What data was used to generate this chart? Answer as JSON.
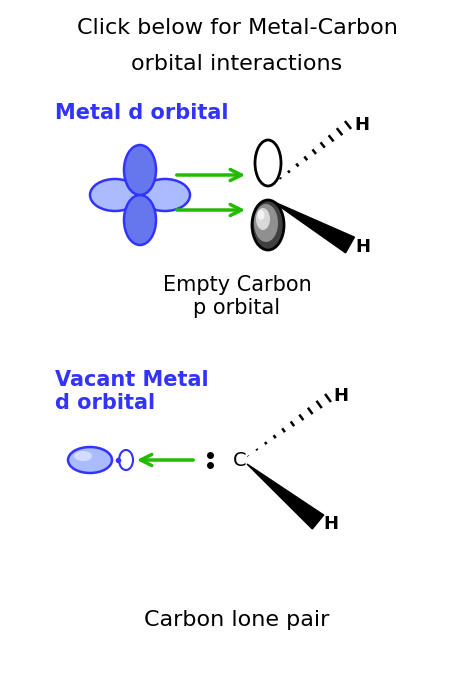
{
  "title_line1": "Click below for Metal-Carbon",
  "title_line2": "orbital interactions",
  "title_fontsize": 16,
  "label_metal_d": "Metal d orbital",
  "label_empty_carbon": "Empty Carbon\np orbital",
  "label_vacant_metal": "Vacant Metal\nd orbital",
  "label_carbon_lone": "Carbon lone pair",
  "blue_color": "#3333FF",
  "green_color": "#22BB00",
  "bg_color": "#FFFFFF",
  "black": "#000000",
  "gray_dark": "#404040",
  "gray_mid": "#909090",
  "gray_light": "#D8D8D8"
}
